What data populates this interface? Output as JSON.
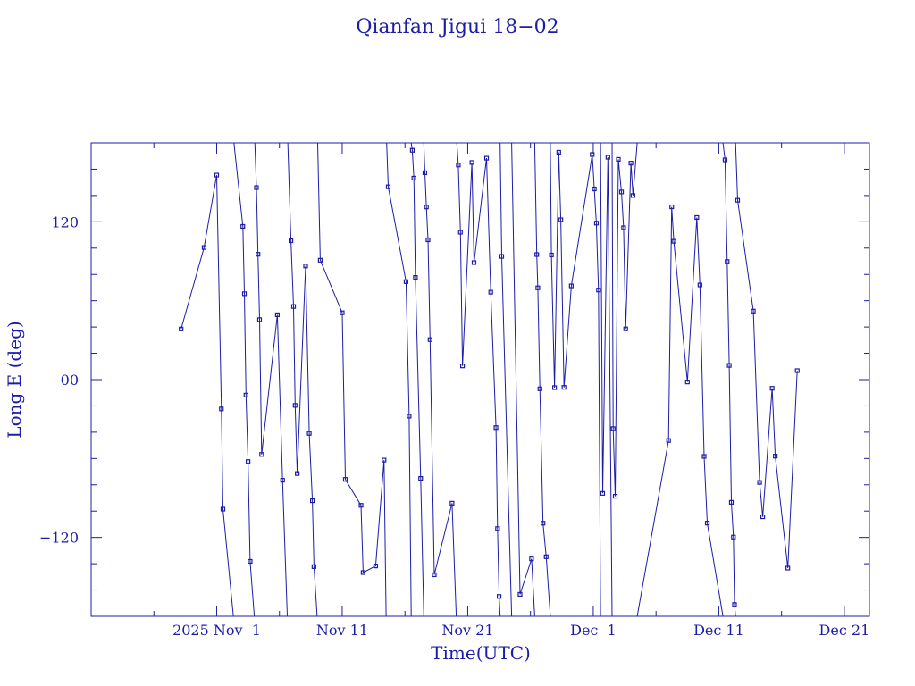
{
  "chart_data": {
    "type": "line",
    "title": "Qianfan Jigui 18−02",
    "xlabel": "Time(UTC)",
    "ylabel": "Long E (deg)",
    "ylim": [
      -180,
      180
    ],
    "xlim": [
      "2025-10-22",
      "2025-12-23"
    ],
    "yticks": [
      {
        "value": 120,
        "label": "120"
      },
      {
        "value": 0,
        "label": "00"
      },
      {
        "value": -120,
        "label": "−120"
      }
    ],
    "xticks": [
      {
        "value": "2025-11-01",
        "label": "2025 Nov  1"
      },
      {
        "value": "2025-11-11",
        "label": "Nov 11"
      },
      {
        "value": "2025-11-21",
        "label": "Nov 21"
      },
      {
        "value": "2025-12-01",
        "label": "Dec  1"
      },
      {
        "value": "2025-12-11",
        "label": "Dec 11"
      },
      {
        "value": "2025-12-21",
        "label": "Dec 21"
      }
    ],
    "grid": false,
    "line_color": "#1c1ca8",
    "series": [
      {
        "points": [
          [
            "2025-10-29T04:00",
            38.5
          ],
          [
            "2025-10-31T00:00",
            100.5
          ],
          [
            "2025-11-01T00:00",
            155.5
          ],
          [
            "2025-11-01T09:00",
            -22.3
          ],
          [
            "2025-11-01T12:00",
            -98.5
          ],
          [
            "2025-11-02T08:00",
            -180
          ]
        ]
      },
      {
        "points": [
          [
            "2025-11-02T09:00",
            180
          ],
          [
            "2025-11-03T02:00",
            116.5
          ],
          [
            "2025-11-03T05:00",
            65.3
          ],
          [
            "2025-11-03T08:00",
            -11.8
          ],
          [
            "2025-11-03T12:00",
            -62.3
          ],
          [
            "2025-11-03T16:00",
            -138.2
          ],
          [
            "2025-11-04T00:00",
            -180
          ]
        ]
      },
      {
        "points": [
          [
            "2025-11-04T01:00",
            180
          ],
          [
            "2025-11-04T04:00",
            146.0
          ],
          [
            "2025-11-04T07:00",
            95.3
          ],
          [
            "2025-11-04T10:00",
            45.6
          ],
          [
            "2025-11-04T14:00",
            -56.9
          ],
          [
            "2025-11-05T20:00",
            49.3
          ],
          [
            "2025-11-06T06:00",
            -76.5
          ],
          [
            "2025-11-06T15:00",
            -180
          ]
        ]
      },
      {
        "points": [
          [
            "2025-11-06T16:00",
            180
          ],
          [
            "2025-11-06T22:00",
            105.6
          ],
          [
            "2025-11-07T03:00",
            55.6
          ],
          [
            "2025-11-07T06:00",
            -19.6
          ],
          [
            "2025-11-07T10:00",
            -71.4
          ],
          [
            "2025-11-08T02:00",
            86.4
          ],
          [
            "2025-11-08T09:00",
            -40.9
          ],
          [
            "2025-11-08T15:00",
            -92.1
          ],
          [
            "2025-11-08T18:00",
            -142.2
          ],
          [
            "2025-11-09T00:00",
            -180
          ]
        ]
      },
      {
        "points": [
          [
            "2025-11-09T01:00",
            180
          ],
          [
            "2025-11-09T06:00",
            90.8
          ],
          [
            "2025-11-11T00:00",
            50.8
          ],
          [
            "2025-11-11T06:00",
            -75.9
          ],
          [
            "2025-11-12T12:00",
            -95.6
          ],
          [
            "2025-11-12T16:00",
            -146.7
          ],
          [
            "2025-11-13T16:00",
            -141.7
          ],
          [
            "2025-11-14T08:00",
            -61.2
          ],
          [
            "2025-11-14T12:00",
            -180
          ]
        ]
      },
      {
        "points": [
          [
            "2025-11-14T13:00",
            180
          ],
          [
            "2025-11-14T16:00",
            146.6
          ],
          [
            "2025-11-16T02:00",
            74.5
          ],
          [
            "2025-11-16T08:00",
            -27.8
          ],
          [
            "2025-11-16T12:00",
            -180
          ]
        ]
      },
      {
        "points": [
          [
            "2025-11-16T12:00",
            180
          ],
          [
            "2025-11-16T14:00",
            174.4
          ],
          [
            "2025-11-16T17:00",
            153.2
          ],
          [
            "2025-11-16T20:00",
            77.7
          ],
          [
            "2025-11-17T06:00",
            -75.1
          ],
          [
            "2025-11-17T12:00",
            -180
          ]
        ]
      },
      {
        "points": [
          [
            "2025-11-17T12:00",
            180
          ],
          [
            "2025-11-17T14:00",
            157.3
          ],
          [
            "2025-11-17T17:00",
            131.3
          ],
          [
            "2025-11-17T20:00",
            106.3
          ],
          [
            "2025-11-18T00:00",
            30.4
          ],
          [
            "2025-11-18T08:00",
            -148.4
          ],
          [
            "2025-11-19T18:00",
            -94.0
          ],
          [
            "2025-11-20T02:00",
            -180
          ]
        ]
      },
      {
        "points": [
          [
            "2025-11-20T03:00",
            180
          ],
          [
            "2025-11-20T06:00",
            163.2
          ],
          [
            "2025-11-20T10:00",
            112.1
          ],
          [
            "2025-11-20T14:00",
            10.4
          ],
          [
            "2025-11-21T08:00",
            165.1
          ],
          [
            "2025-11-21T12:00",
            89.0
          ],
          [
            "2025-11-22T12:00",
            168.4
          ],
          [
            "2025-11-22T20:00",
            66.5
          ],
          [
            "2025-11-23T06:00",
            -36.5
          ],
          [
            "2025-11-23T09:00",
            -113.3
          ],
          [
            "2025-11-23T12:00",
            -164.9
          ],
          [
            "2025-11-23T14:00",
            -180
          ]
        ]
      },
      {
        "points": [
          [
            "2025-11-23T14:00",
            180
          ],
          [
            "2025-11-23T17:00",
            93.7
          ],
          [
            "2025-11-24T12:00",
            -180
          ]
        ]
      },
      {
        "points": [
          [
            "2025-11-24T12:00",
            180
          ],
          [
            "2025-11-25T04:00",
            -163.3
          ],
          [
            "2025-11-26T02:00",
            -136.3
          ],
          [
            "2025-11-26T08:00",
            -180
          ]
        ]
      },
      {
        "points": [
          [
            "2025-11-26T08:00",
            180
          ],
          [
            "2025-11-26T12:00",
            95.1
          ],
          [
            "2025-11-26T14:00",
            69.8
          ],
          [
            "2025-11-26T18:00",
            -7.0
          ],
          [
            "2025-11-27T00:00",
            -109.2
          ],
          [
            "2025-11-27T06:00",
            -134.7
          ],
          [
            "2025-11-27T14:00",
            -180
          ]
        ]
      },
      {
        "points": [
          [
            "2025-11-27T14:00",
            180
          ],
          [
            "2025-11-27T16:00",
            94.8
          ],
          [
            "2025-11-27T22:00",
            -6.1
          ],
          [
            "2025-11-28T06:00",
            172.9
          ],
          [
            "2025-11-28T10:00",
            121.6
          ],
          [
            "2025-11-28T16:00",
            -5.9
          ],
          [
            "2025-11-29T06:00",
            71.3
          ],
          [
            "2025-11-30T22:00",
            171.2
          ],
          [
            "2025-12-01T02:00",
            145.0
          ],
          [
            "2025-12-01T06:00",
            119.0
          ],
          [
            "2025-12-01T10:00",
            68.1
          ],
          [
            "2025-12-01T14:00",
            -180
          ]
        ]
      },
      {
        "points": [
          [
            "2025-12-01T14:00",
            180
          ],
          [
            "2025-12-01T18:00",
            -86.5
          ],
          [
            "2025-12-02T04:00",
            169.1
          ],
          [
            "2025-12-02T12:00",
            -180
          ]
        ]
      },
      {
        "points": [
          [
            "2025-12-02T12:00",
            180
          ],
          [
            "2025-12-02T14:00",
            -37.3
          ],
          [
            "2025-12-02T18:00",
            -88.7
          ],
          [
            "2025-12-03T00:00",
            167.5
          ],
          [
            "2025-12-03T06:00",
            142.7
          ],
          [
            "2025-12-03T10:00",
            115.5
          ],
          [
            "2025-12-03T14:00",
            38.6
          ],
          [
            "2025-12-04T00:00",
            164.6
          ],
          [
            "2025-12-04T04:00",
            140.0
          ],
          [
            "2025-12-04T12:00",
            180
          ]
        ]
      },
      {
        "points": [
          [
            "2025-12-04T12:00",
            -180
          ],
          [
            "2025-12-07T00:00",
            -46.3
          ],
          [
            "2025-12-07T06:00",
            131.4
          ],
          [
            "2025-12-07T10:00",
            105.2
          ],
          [
            "2025-12-08T12:00",
            -1.8
          ],
          [
            "2025-12-09T06:00",
            123.3
          ],
          [
            "2025-12-09T12:00",
            72.0
          ],
          [
            "2025-12-09T20:00",
            -58.4
          ],
          [
            "2025-12-10T02:00",
            -109.1
          ],
          [
            "2025-12-11T08:00",
            -180
          ]
        ]
      },
      {
        "points": [
          [
            "2025-12-11T08:00",
            180
          ],
          [
            "2025-12-11T12:00",
            167.1
          ],
          [
            "2025-12-11T16:00",
            89.8
          ],
          [
            "2025-12-11T20:00",
            10.8
          ],
          [
            "2025-12-12T00:00",
            -93.3
          ],
          [
            "2025-12-12T04:00",
            -119.7
          ],
          [
            "2025-12-12T06:00",
            -171.0
          ],
          [
            "2025-12-12T08:00",
            -180
          ]
        ]
      },
      {
        "points": [
          [
            "2025-12-12T08:00",
            180
          ],
          [
            "2025-12-12T12:00",
            136.4
          ],
          [
            "2025-12-13T18:00",
            52.1
          ],
          [
            "2025-12-14T06:00",
            -78.2
          ],
          [
            "2025-12-14T12:00",
            -104.3
          ],
          [
            "2025-12-15T06:00",
            -6.6
          ],
          [
            "2025-12-15T12:00",
            -58.2
          ],
          [
            "2025-12-16T12:00",
            -143.3
          ],
          [
            "2025-12-17T06:00",
            6.8
          ]
        ]
      }
    ]
  }
}
